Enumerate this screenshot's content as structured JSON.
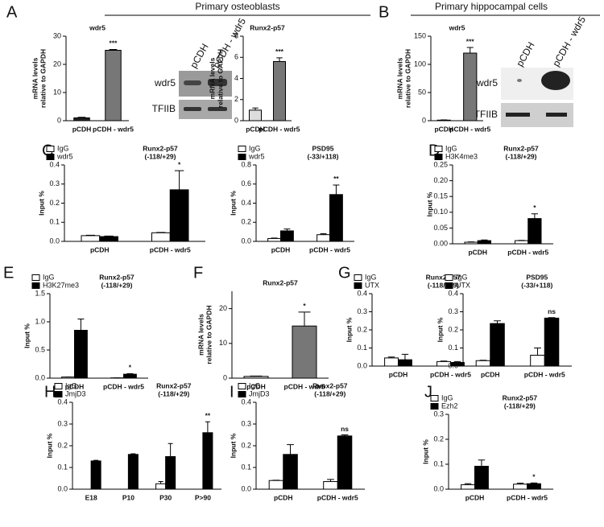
{
  "figure": {
    "panels": [
      "A",
      "B",
      "C",
      "D",
      "E",
      "F",
      "G",
      "H",
      "I",
      "J"
    ],
    "sections": [
      "Primary osteoblasts",
      "Primary hippocampal cells"
    ],
    "blots": [
      {
        "lanes": [
          "pCDH",
          "pCDH - wdr5"
        ],
        "rows": [
          "wdr5",
          "TFIIB"
        ]
      },
      {
        "lanes": [
          "pCDH",
          "pCDH - wdr5"
        ],
        "rows": [
          "wdr5",
          "TFIIB"
        ]
      }
    ]
  },
  "chart_data": [
    {
      "type": "bar",
      "title": [
        "wdr5"
      ],
      "ylabel": [
        "mRNA levels",
        "relative to GAPDH"
      ],
      "categories": [
        "pCDH",
        "pCDH - wdr5"
      ],
      "values": [
        1,
        25
      ],
      "errors": [
        0.2,
        0.3
      ],
      "colors": [
        "#222222",
        "#777777"
      ],
      "significance": [
        null,
        "***"
      ],
      "ylim": [
        0,
        30
      ],
      "yticks": [
        0,
        10,
        20,
        30
      ]
    },
    {
      "type": "bar",
      "title": [
        "Runx2-p57"
      ],
      "ylabel": [
        "mRNA levels",
        "relative to GAPDH"
      ],
      "categories": [
        "pCDH",
        "pCDH - wdr5"
      ],
      "values": [
        1.0,
        5.6
      ],
      "errors": [
        0.2,
        0.35
      ],
      "colors": [
        "#dddddd",
        "#777777"
      ],
      "significance": [
        null,
        "***"
      ],
      "ylim": [
        0,
        8
      ],
      "yticks": [
        0,
        2,
        4,
        6,
        8
      ]
    },
    {
      "type": "bar",
      "title": [
        "wdr5"
      ],
      "ylabel": [
        "mRNA levels",
        "relative to GAPDH"
      ],
      "categories": [
        "pCDH",
        "pCDH - wdr5"
      ],
      "values": [
        1,
        120
      ],
      "errors": [
        0.5,
        10
      ],
      "colors": [
        "#222222",
        "#777777"
      ],
      "significance": [
        null,
        "***"
      ],
      "ylim": [
        0,
        150
      ],
      "yticks": [
        0,
        50,
        100,
        150
      ]
    },
    {
      "type": "grouped",
      "title": [
        "Runx2-p57",
        "(-118/+29)"
      ],
      "ylabel": [
        "Input %"
      ],
      "categories": [
        "pCDH",
        "pCDH - wdr5"
      ],
      "series": [
        {
          "name": "IgG",
          "color": "#ffffff",
          "values": [
            0.03,
            0.045
          ],
          "errors": [
            0.002,
            0.002
          ],
          "significance": [
            null,
            null
          ]
        },
        {
          "name": "wdr5",
          "color": "#000000",
          "values": [
            0.025,
            0.27
          ],
          "errors": [
            0.003,
            0.1
          ],
          "significance": [
            null,
            "*"
          ]
        }
      ],
      "ylim": [
        0,
        0.4
      ],
      "yticks": [
        {
          "value": 0,
          "label": "0.0"
        },
        0.1,
        0.2,
        0.3,
        0.4
      ]
    },
    {
      "type": "grouped",
      "title": [
        "PSD95",
        "(-33/+118)"
      ],
      "ylabel": [
        "Input %"
      ],
      "categories": [
        "pCDH",
        "pCDH - wdr5"
      ],
      "series": [
        {
          "name": "IgG",
          "color": "#ffffff",
          "values": [
            0.03,
            0.07
          ],
          "errors": [
            0.005,
            0.01
          ],
          "significance": [
            null,
            null
          ]
        },
        {
          "name": "wdr5",
          "color": "#000000",
          "values": [
            0.11,
            0.49
          ],
          "errors": [
            0.02,
            0.1
          ],
          "significance": [
            null,
            "**"
          ]
        }
      ],
      "ylim": [
        0,
        0.8
      ],
      "yticks": [
        {
          "value": 0,
          "label": "0.0"
        },
        0.2,
        0.4,
        0.6,
        0.8
      ]
    },
    {
      "type": "grouped",
      "title": [
        "Runx2-p57",
        "(-118/+29)"
      ],
      "ylabel": [
        "Input %"
      ],
      "categories": [
        "pCDH",
        "pCDH - wdr5"
      ],
      "series": [
        {
          "name": "IgG",
          "color": "#ffffff",
          "values": [
            0.005,
            0.01
          ],
          "errors": [
            0.001,
            0.001
          ],
          "significance": [
            null,
            null
          ]
        },
        {
          "name": "H3K4me3",
          "color": "#000000",
          "values": [
            0.01,
            0.08
          ],
          "errors": [
            0.002,
            0.015
          ],
          "significance": [
            null,
            "*"
          ]
        }
      ],
      "ylim": [
        0,
        0.25
      ],
      "yticks": [
        {
          "value": 0,
          "label": "0.00"
        },
        0.05,
        {
          "value": 0.1,
          "label": "0.10"
        },
        0.15,
        {
          "value": 0.2,
          "label": "0.20"
        },
        0.25
      ]
    },
    {
      "type": "grouped",
      "title": [
        "Runx2-p57",
        "(-118/+29)"
      ],
      "ylabel": [
        "Input %"
      ],
      "categories": [
        "pCDH",
        "pCDH - wdr5"
      ],
      "series": [
        {
          "name": "IgG",
          "color": "#ffffff",
          "values": [
            0.02,
            0.005
          ],
          "errors": [
            0.002,
            0.001
          ],
          "significance": [
            null,
            null
          ]
        },
        {
          "name": "H3K27me3",
          "color": "#000000",
          "values": [
            0.85,
            0.07
          ],
          "errors": [
            0.2,
            0.01
          ],
          "significance": [
            null,
            "*"
          ]
        }
      ],
      "ylim": [
        0,
        1.5
      ],
      "yticks": [
        {
          "value": 0,
          "label": "0.0"
        },
        0.5,
        {
          "value": 1,
          "label": "1.0"
        },
        1.5
      ]
    },
    {
      "type": "bar",
      "title": [
        "Runx2-p57"
      ],
      "ylabel": [
        "mRNA levels",
        "relative to GAPDH"
      ],
      "categories": [
        "pCDH",
        "pCDH - wdr5"
      ],
      "values": [
        0.5,
        15
      ],
      "errors": [
        0.1,
        4
      ],
      "colors": [
        "#dddddd",
        "#777777"
      ],
      "significance": [
        null,
        "*"
      ],
      "ylim": [
        0,
        25
      ],
      "yticks": [
        0,
        10,
        20
      ]
    },
    {
      "type": "grouped",
      "title": [
        "Runx2-p57",
        "(-118/+29)"
      ],
      "ylabel": [
        "Input %"
      ],
      "categories": [
        "pCDH",
        "pCDH - wdr5"
      ],
      "series": [
        {
          "name": "IgG",
          "color": "#ffffff",
          "values": [
            0.045,
            0.025
          ],
          "errors": [
            0.005,
            0.003
          ],
          "significance": [
            null,
            null
          ]
        },
        {
          "name": "UTX",
          "color": "#000000",
          "values": [
            0.035,
            0.02
          ],
          "errors": [
            0.03,
            0.005
          ],
          "significance": [
            null,
            null
          ]
        }
      ],
      "ylim": [
        0,
        0.4
      ],
      "yticks": [
        {
          "value": 0,
          "label": "0.0"
        },
        0.1,
        0.2,
        0.3,
        0.4
      ]
    },
    {
      "type": "grouped",
      "title": [
        "PSD95",
        "(-33/+118)"
      ],
      "ylabel": [
        "Input %"
      ],
      "categories": [
        "pCDH",
        "pCDH - wdr5"
      ],
      "series": [
        {
          "name": "IgG",
          "color": "#ffffff",
          "values": [
            0.03,
            0.06
          ],
          "errors": [
            0.002,
            0.04
          ],
          "significance": [
            null,
            null
          ]
        },
        {
          "name": "UTX",
          "color": "#000000",
          "values": [
            0.235,
            0.265
          ],
          "errors": [
            0.015,
            0.003
          ],
          "significance": [
            null,
            "ns"
          ]
        }
      ],
      "ylim": [
        0,
        0.4
      ],
      "yticks": [
        {
          "value": 0,
          "label": "0.0"
        },
        0.1,
        0.2,
        0.3,
        0.4
      ]
    },
    {
      "type": "grouped",
      "title": [
        "Runx2-p57",
        "(-118/+29)"
      ],
      "ylabel": [
        "Input %"
      ],
      "categories": [
        "E18",
        "P10",
        "P30",
        "P>90"
      ],
      "series": [
        {
          "name": "IgG",
          "color": "#ffffff",
          "values": [
            0,
            0,
            0.025,
            0
          ],
          "errors": [
            0,
            0,
            0.01,
            0
          ],
          "significance": [
            null,
            null,
            null,
            null
          ]
        },
        {
          "name": "JmjD3",
          "color": "#000000",
          "values": [
            0.13,
            0.16,
            0.15,
            0.26
          ],
          "errors": [
            0.003,
            0.003,
            0.06,
            0.05
          ],
          "significance": [
            null,
            null,
            null,
            "**"
          ]
        }
      ],
      "ylim": [
        0,
        0.4
      ],
      "yticks": [
        {
          "value": 0,
          "label": "0.0"
        },
        0.1,
        0.2,
        0.3,
        0.4
      ]
    },
    {
      "type": "grouped",
      "title": [
        "Runx2-p57",
        "(-118/+29)"
      ],
      "ylabel": [
        "Input %"
      ],
      "categories": [
        "pCDH",
        "pCDH - wdr5"
      ],
      "series": [
        {
          "name": "IgG",
          "color": "#ffffff",
          "values": [
            0.04,
            0.035
          ],
          "errors": [
            0.001,
            0.01
          ],
          "significance": [
            null,
            null
          ]
        },
        {
          "name": "JmjD3",
          "color": "#000000",
          "values": [
            0.16,
            0.245
          ],
          "errors": [
            0.045,
            0.005
          ],
          "significance": [
            null,
            "ns"
          ]
        }
      ],
      "ylim": [
        0,
        0.4
      ],
      "yticks": [
        {
          "value": 0,
          "label": "0.0"
        },
        0.1,
        0.2,
        0.3,
        0.4
      ]
    },
    {
      "type": "grouped",
      "title": [
        "Runx2-p57",
        "(-118/+29)"
      ],
      "ylabel": [
        "Input %"
      ],
      "categories": [
        "pCDH",
        "pCDH - wdr5"
      ],
      "series": [
        {
          "name": "IgG",
          "color": "#ffffff",
          "values": [
            0.018,
            0.02
          ],
          "errors": [
            0.004,
            0.004
          ],
          "significance": [
            null,
            null
          ]
        },
        {
          "name": "Ezh2",
          "color": "#000000",
          "values": [
            0.092,
            0.022
          ],
          "errors": [
            0.025,
            0.003
          ],
          "significance": [
            null,
            "*"
          ]
        }
      ],
      "ylim": [
        0,
        0.3
      ],
      "yticks": [
        {
          "value": 0,
          "label": "0.0"
        },
        0.1,
        0.2,
        0.3
      ]
    }
  ]
}
